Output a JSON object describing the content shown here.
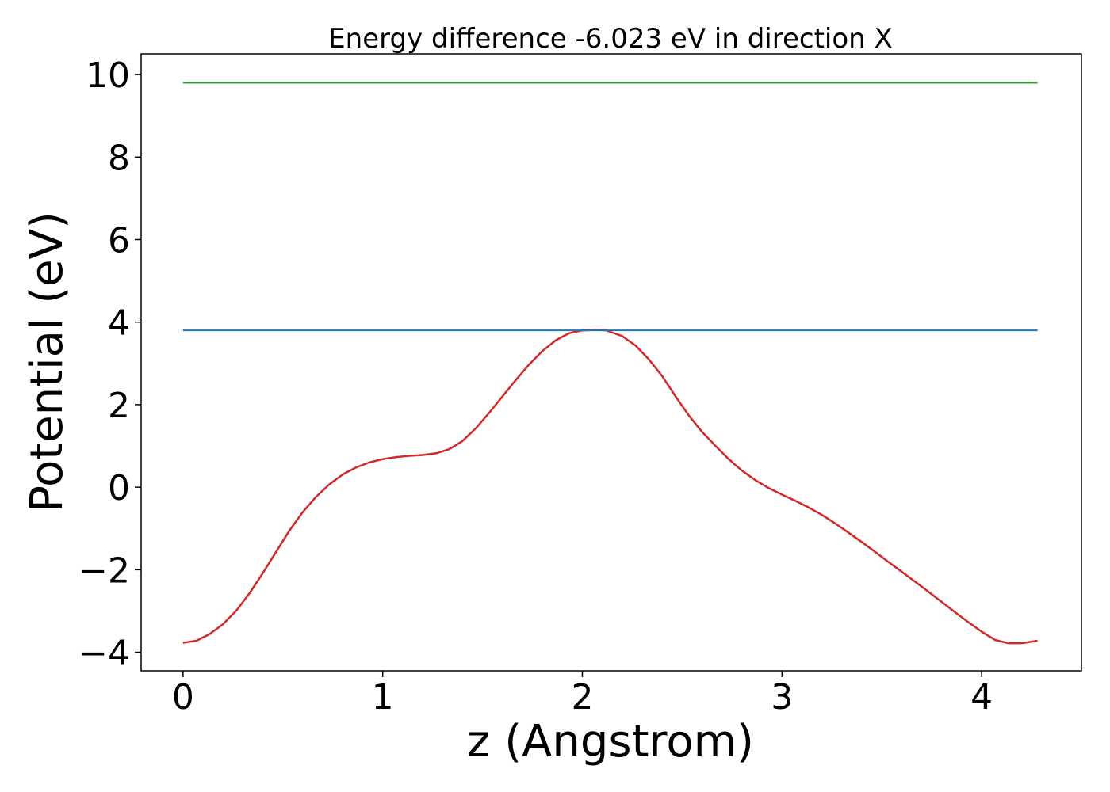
{
  "chart_data": {
    "type": "line",
    "title": "Energy difference -6.023 eV in direction X",
    "xlabel": "z (Angstrom)",
    "ylabel": "Potential (eV)",
    "xlim": [
      -0.21,
      4.5
    ],
    "ylim": [
      -4.45,
      10.5
    ],
    "xticks": [
      0,
      1,
      2,
      3,
      4
    ],
    "xtick_labels": [
      "0",
      "1",
      "2",
      "3",
      "4"
    ],
    "yticks": [
      -4,
      -2,
      0,
      2,
      4,
      6,
      8,
      10
    ],
    "ytick_labels": [
      "−4",
      "−2",
      "0",
      "2",
      "4",
      "6",
      "8",
      "10"
    ],
    "grid": false,
    "legend": "none",
    "series": [
      {
        "color": "#d62728",
        "x": [
          0,
          0.067,
          0.133,
          0.2,
          0.267,
          0.333,
          0.4,
          0.467,
          0.533,
          0.6,
          0.667,
          0.733,
          0.8,
          0.867,
          0.933,
          1.0,
          1.067,
          1.133,
          1.2,
          1.267,
          1.333,
          1.4,
          1.467,
          1.533,
          1.6,
          1.667,
          1.733,
          1.8,
          1.867,
          1.933,
          2.0,
          2.067,
          2.12,
          2.2,
          2.267,
          2.333,
          2.4,
          2.467,
          2.533,
          2.6,
          2.667,
          2.733,
          2.8,
          2.867,
          2.933,
          3.0,
          3.067,
          3.133,
          3.2,
          3.267,
          3.333,
          3.4,
          3.467,
          3.533,
          3.6,
          3.667,
          3.733,
          3.8,
          3.867,
          3.933,
          4.0,
          4.067,
          4.133,
          4.2,
          4.28
        ],
        "y": [
          -3.77,
          -3.72,
          -3.56,
          -3.32,
          -2.99,
          -2.57,
          -2.08,
          -1.56,
          -1.05,
          -0.6,
          -0.23,
          0.07,
          0.31,
          0.48,
          0.6,
          0.68,
          0.73,
          0.76,
          0.78,
          0.82,
          0.92,
          1.12,
          1.43,
          1.8,
          2.2,
          2.6,
          2.97,
          3.3,
          3.56,
          3.73,
          3.8,
          3.81,
          3.8,
          3.66,
          3.43,
          3.1,
          2.69,
          2.2,
          1.74,
          1.34,
          1.0,
          0.68,
          0.4,
          0.17,
          -0.02,
          -0.18,
          -0.33,
          -0.49,
          -0.67,
          -0.88,
          -1.1,
          -1.33,
          -1.57,
          -1.81,
          -2.05,
          -2.29,
          -2.53,
          -2.78,
          -3.03,
          -3.27,
          -3.5,
          -3.7,
          -3.78,
          -3.78,
          -3.72
        ]
      },
      {
        "color": "#1f77b4",
        "x": [
          0,
          4.28
        ],
        "y": [
          3.8,
          3.8
        ]
      },
      {
        "color": "#2ca02c",
        "x": [
          0,
          4.28
        ],
        "y": [
          9.8,
          9.8
        ]
      }
    ]
  }
}
